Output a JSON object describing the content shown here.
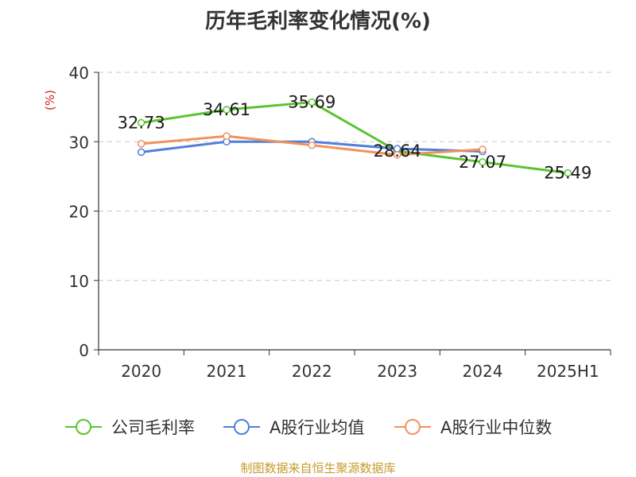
{
  "chart_data": {
    "type": "line",
    "title": "历年毛利率变化情况(%)",
    "ylabel": "(%)",
    "xlabel": "",
    "categories": [
      "2020",
      "2021",
      "2022",
      "2023",
      "2024",
      "2025H1"
    ],
    "ylim": [
      0,
      40
    ],
    "yticks": [
      "0",
      "10",
      "20",
      "30",
      "40"
    ],
    "grid": true,
    "legend_position": "bottom",
    "series": [
      {
        "name": "公司毛利率",
        "color": "#5ac431",
        "values": [
          32.73,
          34.61,
          35.69,
          28.64,
          27.07,
          25.49
        ],
        "labels": [
          "32.73",
          "34.61",
          "35.69",
          "28.64",
          "27.07",
          "25.49"
        ]
      },
      {
        "name": "A股行业均值",
        "color": "#4f80d9",
        "values": [
          28.5,
          30.0,
          30.0,
          29.0,
          28.6,
          null
        ]
      },
      {
        "name": "A股行业中位数",
        "color": "#f2925e",
        "values": [
          29.7,
          30.8,
          29.5,
          28.1,
          28.9,
          null
        ]
      }
    ]
  },
  "source_text": "制图数据来自恒生聚源数据库"
}
